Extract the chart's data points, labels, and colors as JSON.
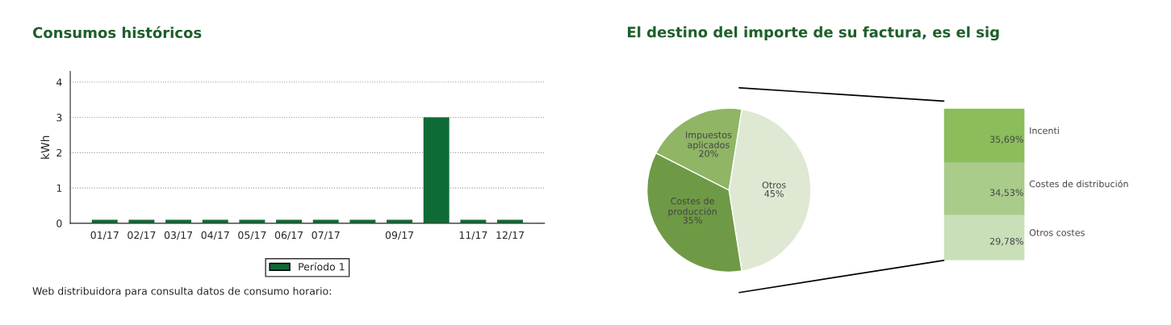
{
  "chart_data": [
    {
      "type": "bar",
      "title": "Consumos históricos",
      "ylabel": "kWh",
      "categories": [
        "01/17",
        "02/17",
        "03/17",
        "04/17",
        "05/17",
        "06/17",
        "07/17",
        null,
        "09/17",
        null,
        "11/17",
        "12/17"
      ],
      "series": [
        {
          "name": "Período 1",
          "color": "#0e6b35",
          "values": [
            0.1,
            0.1,
            0.1,
            0.1,
            0.1,
            0.1,
            0.1,
            0.1,
            0.1,
            3.0,
            0.1,
            0.1
          ]
        }
      ],
      "ylim": [
        0,
        4.3
      ],
      "yticks": [
        0,
        1,
        2,
        3,
        4
      ],
      "grid": "y",
      "legend": "bottom",
      "annotations": [
        "Web distribuidora para consulta datos de consumo horario:"
      ]
    },
    {
      "type": "pie",
      "title": "El destino del importe de su factura, es el sig",
      "categories": [
        "Otros",
        "Costes de producción",
        "Impuestos aplicados"
      ],
      "values": [
        45,
        35,
        20
      ],
      "colors": [
        "#dfe8d3",
        "#6f9a45",
        "#8fb565"
      ],
      "value_labels": [
        "45%",
        "35%",
        "20%"
      ]
    },
    {
      "type": "bar",
      "stacked": true,
      "categories": [
        null
      ],
      "series": [
        {
          "name": "Otros costes",
          "color": "#c8dfb8",
          "values": [
            29.78
          ],
          "value_labels": [
            "29,78%"
          ]
        },
        {
          "name": "Costes de distribución",
          "color": "#a9cc8a",
          "values": [
            34.53
          ],
          "value_labels": [
            "34,53%"
          ]
        },
        {
          "name": "Incenti",
          "color": "#8bbd5a",
          "values": [
            35.69
          ],
          "value_labels": [
            "35,69%"
          ]
        }
      ]
    }
  ]
}
